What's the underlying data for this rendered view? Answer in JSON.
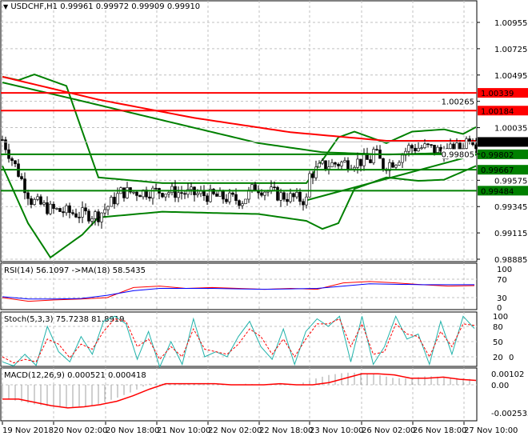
{
  "header": {
    "symbol": "USDCHF,H1",
    "ohlc": "0.99961 0.99972 0.99909 0.99910"
  },
  "chart_data": [
    {
      "type": "candlestick",
      "title": "USDCHF,H1",
      "ylim": [
        0.98885,
        1.01075
      ],
      "y_ticks": [
        "1.00955",
        "1.00725",
        "1.00495",
        "1.00265",
        "1.00035",
        "0.99805",
        "0.99575",
        "0.99345",
        "0.99115",
        "0.98885"
      ],
      "x_ticks": [
        "19 Nov 2018",
        "20 Nov 02:00",
        "20 Nov 18:00",
        "21 Nov 10:00",
        "22 Nov 02:00",
        "22 Nov 18:00",
        "23 Nov 10:00",
        "26 Nov 02:00",
        "26 Nov 18:00",
        "27 Nov 10:00"
      ],
      "current_price": {
        "value": 0.9991,
        "label": "0.99910"
      },
      "levels": [
        {
          "value": 1.00339,
          "label": "1.00339",
          "color": "#ff0000"
        },
        {
          "value": 1.00184,
          "label": "1.00184",
          "color": "#ff0000"
        },
        {
          "value": 0.99802,
          "label": "0.99802",
          "color": "#008000"
        },
        {
          "value": 0.99667,
          "label": "0.99667",
          "color": "#008000"
        },
        {
          "value": 0.99484,
          "label": "0.99484",
          "color": "#008000"
        }
      ],
      "close_path_hours": [
        0,
        4,
        9,
        15,
        24,
        30,
        33,
        37,
        50,
        62,
        75,
        79,
        87,
        95,
        96,
        100,
        104,
        115,
        116,
        119,
        123,
        127,
        133,
        138,
        143,
        146,
        148
      ],
      "close_path": [
        0.9993,
        0.997,
        0.994,
        0.9932,
        0.9928,
        0.9927,
        0.9935,
        0.9947,
        0.9948,
        0.9945,
        0.994,
        0.9952,
        0.9944,
        0.994,
        0.9962,
        0.997,
        0.9972,
        0.9975,
        0.9983,
        0.997,
        0.9975,
        0.9986,
        0.9986,
        0.9982,
        0.9986,
        0.9996,
        0.9991
      ],
      "ma_red": {
        "hours": [
          0,
          30,
          60,
          90,
          120,
          148
        ],
        "values": [
          1.0048,
          1.0028,
          1.0012,
          0.99995,
          0.9992,
          0.9992
        ]
      },
      "ma_green": {
        "hours": [
          0,
          20,
          50,
          80,
          100,
          120,
          148
        ],
        "values": [
          1.0043,
          1.003,
          1.001,
          0.999,
          0.9982,
          0.998,
          0.9982
        ]
      },
      "bb_upper": {
        "hours": [
          0,
          5,
          10,
          20,
          30,
          50,
          80,
          95,
          105,
          110,
          120,
          128,
          138,
          144,
          148
        ],
        "values": [
          1.0048,
          1.0045,
          1.005,
          1.004,
          0.996,
          0.9955,
          0.9955,
          0.9955,
          0.9995,
          1.0,
          0.999,
          1.0,
          1.0002,
          0.9998,
          1.0004
        ]
      },
      "bb_lower": {
        "hours": [
          0,
          8,
          15,
          25,
          30,
          50,
          80,
          95,
          100,
          105,
          110,
          120,
          130,
          138,
          148
        ],
        "values": [
          0.997,
          0.992,
          0.989,
          0.991,
          0.9925,
          0.993,
          0.9928,
          0.9922,
          0.9915,
          0.992,
          0.995,
          0.996,
          0.9957,
          0.9958,
          0.997
        ]
      },
      "trendline": {
        "hours": [
          95,
          150
        ],
        "values": [
          0.994,
          0.998
        ],
        "color": "#008000"
      }
    },
    {
      "type": "line",
      "title": "RSI(14) 56.1097  ->MA(18) 58.5435",
      "y_ticks": [
        "100",
        "70",
        "30",
        "0"
      ],
      "ylim": [
        0,
        100
      ],
      "series": [
        {
          "color": "#ff0000",
          "values": [
            30,
            22,
            25,
            27,
            30,
            52,
            55,
            50,
            52,
            50,
            48,
            50,
            48,
            62,
            65,
            62,
            58,
            55,
            56
          ]
        },
        {
          "color": "#0000ff",
          "values": [
            32,
            27,
            27,
            28,
            35,
            45,
            50,
            50,
            50,
            49,
            48,
            49,
            50,
            55,
            60,
            59,
            58,
            58,
            58
          ]
        }
      ]
    },
    {
      "type": "line",
      "title": "Stoch(5,3,3) 75.7238 81.8919",
      "y_ticks": [
        "100",
        "80",
        "50",
        "20",
        "0"
      ],
      "ylim": [
        0,
        100
      ],
      "series": [
        {
          "color": "#20b2aa",
          "values": [
            10,
            2,
            25,
            3,
            80,
            30,
            10,
            60,
            25,
            90,
            100,
            85,
            15,
            70,
            0,
            50,
            5,
            95,
            20,
            30,
            20,
            60,
            90,
            40,
            15,
            75,
            5,
            70,
            95,
            80,
            100,
            10,
            100,
            5,
            40,
            100,
            55,
            65,
            5,
            90,
            25,
            100,
            76
          ]
        },
        {
          "color": "#ff0000",
          "dashed": true,
          "values": [
            20,
            8,
            15,
            10,
            55,
            45,
            18,
            45,
            35,
            70,
            95,
            90,
            40,
            55,
            15,
            40,
            20,
            75,
            35,
            30,
            25,
            45,
            75,
            60,
            25,
            55,
            20,
            55,
            85,
            85,
            95,
            40,
            85,
            25,
            30,
            85,
            65,
            60,
            20,
            70,
            40,
            85,
            82
          ]
        }
      ]
    },
    {
      "type": "bar",
      "title": "MACD(12,26,9) 0.000521 0.000418",
      "y_ticks": [
        "0.00102",
        "0.00",
        "-0.002535"
      ],
      "ylim": [
        -0.0027,
        0.0013
      ],
      "histogram": [
        -0.0012,
        -0.0015,
        -0.0018,
        -0.002,
        -0.0021,
        -0.002,
        -0.0017,
        -0.0012,
        -0.0006,
        0.0001,
        0.0001,
        0.0001,
        0.0001,
        0.0,
        0.0,
        0.0001,
        0.0,
        0.0001,
        0.0,
        0.0005,
        0.0009,
        0.0011,
        0.0011,
        0.0009,
        0.0006,
        0.0006,
        0.0008,
        0.0007,
        0.0006,
        0.0005
      ],
      "signal": [
        -0.0013,
        -0.0013,
        -0.0016,
        -0.0019,
        -0.0021,
        -0.002,
        -0.0018,
        -0.0015,
        -0.001,
        -0.0004,
        0.0001,
        0.0001,
        0.0001,
        0.0001,
        0.0,
        0.0,
        0.0,
        0.0001,
        0.0,
        0.0,
        0.0002,
        0.0006,
        0.001,
        0.001,
        0.0009,
        0.0006,
        0.0006,
        0.0007,
        0.0005,
        0.0004
      ]
    }
  ]
}
